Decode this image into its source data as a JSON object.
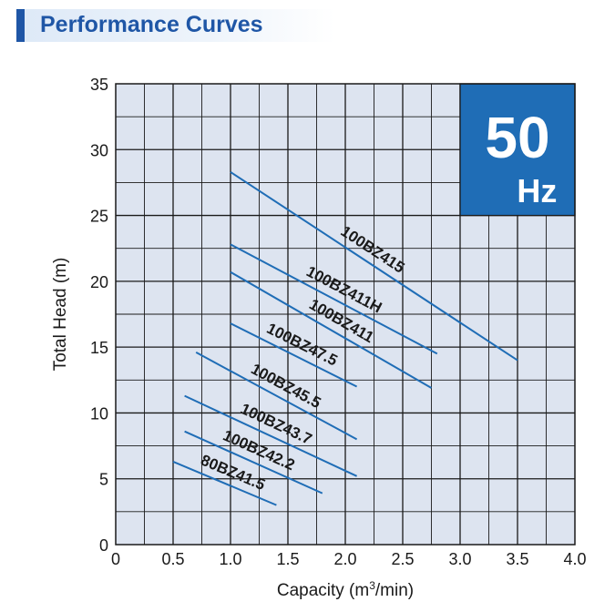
{
  "header": {
    "title": "Performance Curves"
  },
  "badge": {
    "frequency": "50",
    "unit": "Hz"
  },
  "colors": {
    "curve": "#1f6db6",
    "plot_bg": "#dde4f0",
    "badge_bg": "#1f6db6",
    "header": "#1f56a6"
  },
  "chart_data": {
    "type": "line",
    "title": "Performance Curves",
    "xlabel": "Capacity (m",
    "xlabel_sup": "3",
    "xlabel_tail": "/min)",
    "ylabel": "Total Head (m)",
    "xlim": [
      0,
      4.0
    ],
    "ylim": [
      0,
      35
    ],
    "x_ticks": [
      0,
      0.5,
      1.0,
      1.5,
      2.0,
      2.5,
      3.0,
      3.5,
      4.0
    ],
    "x_tick_labels": [
      "0",
      "0.5",
      "1.0",
      "1.5",
      "2.0",
      "2.5",
      "3.0",
      "3.5",
      "4.0"
    ],
    "y_ticks": [
      0,
      5,
      10,
      15,
      20,
      25,
      30,
      35
    ],
    "y_tick_labels": [
      "0",
      "5",
      "10",
      "15",
      "20",
      "25",
      "30",
      "35"
    ],
    "grid": true,
    "series": [
      {
        "name": "100BZ415",
        "x": [
          1.0,
          3.5
        ],
        "y": [
          28.3,
          14.0
        ]
      },
      {
        "name": "100BZ411H",
        "x": [
          1.0,
          2.8
        ],
        "y": [
          22.8,
          14.5
        ]
      },
      {
        "name": "100BZ411",
        "x": [
          1.0,
          2.75
        ],
        "y": [
          20.7,
          11.9
        ]
      },
      {
        "name": "100BZ47.5",
        "x": [
          1.0,
          2.1
        ],
        "y": [
          16.8,
          12.0
        ]
      },
      {
        "name": "100BZ45.5",
        "x": [
          0.7,
          2.1
        ],
        "y": [
          14.6,
          8.0
        ]
      },
      {
        "name": "100BZ43.7",
        "x": [
          0.6,
          2.1
        ],
        "y": [
          11.3,
          5.2
        ]
      },
      {
        "name": "100BZ42.2",
        "x": [
          0.6,
          1.8
        ],
        "y": [
          8.6,
          3.9
        ]
      },
      {
        "name": "80BZ41.5",
        "x": [
          0.5,
          1.4
        ],
        "y": [
          6.3,
          3.0
        ]
      }
    ]
  }
}
